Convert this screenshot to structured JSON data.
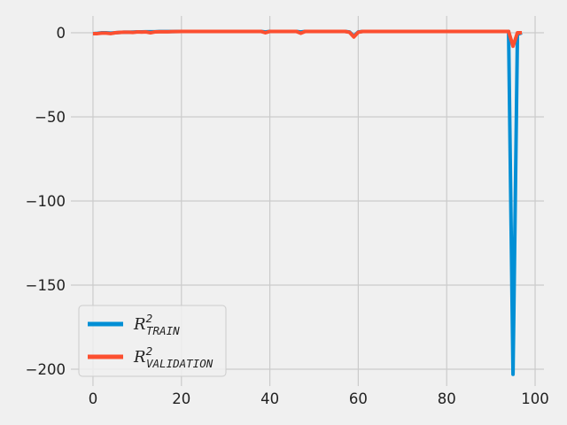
{
  "chart_data": {
    "type": "line",
    "title": "",
    "xlabel": "",
    "ylabel": "",
    "xlim": [
      -5,
      102
    ],
    "ylim": [
      -210,
      10
    ],
    "xticks": [
      0,
      20,
      40,
      60,
      80,
      100
    ],
    "yticks": [
      0,
      -50,
      -100,
      -150,
      -200
    ],
    "grid": true,
    "legend_position": "lower-left",
    "series": [
      {
        "name_main": "R",
        "name_sup": "2",
        "name_sub": "TRAIN",
        "color": "#008fd5",
        "x": [
          0,
          1,
          2,
          3,
          4,
          5,
          6,
          7,
          8,
          9,
          10,
          11,
          12,
          13,
          14,
          15,
          16,
          17,
          18,
          19,
          20,
          21,
          22,
          23,
          24,
          25,
          26,
          27,
          28,
          29,
          30,
          31,
          32,
          33,
          34,
          35,
          36,
          37,
          38,
          39,
          40,
          41,
          42,
          43,
          44,
          45,
          46,
          47,
          48,
          49,
          50,
          51,
          52,
          53,
          54,
          55,
          56,
          57,
          58,
          59,
          60,
          61,
          62,
          63,
          64,
          65,
          66,
          67,
          68,
          69,
          70,
          71,
          72,
          73,
          74,
          75,
          76,
          77,
          78,
          79,
          80,
          81,
          82,
          83,
          84,
          85,
          86,
          87,
          88,
          89,
          90,
          91,
          92,
          93,
          94,
          95,
          96,
          97
        ],
        "y": [
          -0.5,
          -0.3,
          0,
          0,
          -0.2,
          0,
          0.2,
          0.3,
          0.3,
          0.4,
          0.5,
          0.5,
          0.6,
          0.6,
          0.6,
          0.7,
          0.7,
          0.7,
          0.7,
          0.8,
          0.8,
          0.8,
          0.8,
          0.8,
          0.8,
          0.8,
          0.8,
          0.8,
          0.8,
          0.8,
          0.8,
          0.8,
          0.8,
          0.8,
          0.8,
          0.8,
          0.8,
          0.8,
          0.8,
          0.5,
          0.8,
          0.8,
          0.8,
          0.8,
          0.8,
          0.8,
          0.8,
          0.5,
          0.8,
          0.8,
          0.8,
          0.8,
          0.8,
          0.8,
          0.8,
          0.8,
          0.8,
          0.8,
          0.5,
          -2,
          0.5,
          0.8,
          0.8,
          0.8,
          0.8,
          0.8,
          0.8,
          0.8,
          0.8,
          0.8,
          0.8,
          0.8,
          0.8,
          0.8,
          0.8,
          0.8,
          0.8,
          0.8,
          0.8,
          0.8,
          0.8,
          0.8,
          0.8,
          0.8,
          0.8,
          0.8,
          0.8,
          0.8,
          0.8,
          0.8,
          0.8,
          0.8,
          0.8,
          0.8,
          0.8,
          -203,
          -1,
          0
        ]
      },
      {
        "name_main": "R",
        "name_sup": "2",
        "name_sub": "VALIDATION",
        "color": "#fc4f30",
        "x": [
          0,
          1,
          2,
          3,
          4,
          5,
          6,
          7,
          8,
          9,
          10,
          11,
          12,
          13,
          14,
          15,
          16,
          17,
          18,
          19,
          20,
          21,
          22,
          23,
          24,
          25,
          26,
          27,
          28,
          29,
          30,
          31,
          32,
          33,
          34,
          35,
          36,
          37,
          38,
          39,
          40,
          41,
          42,
          43,
          44,
          45,
          46,
          47,
          48,
          49,
          50,
          51,
          52,
          53,
          54,
          55,
          56,
          57,
          58,
          59,
          60,
          61,
          62,
          63,
          64,
          65,
          66,
          67,
          68,
          69,
          70,
          71,
          72,
          73,
          74,
          75,
          76,
          77,
          78,
          79,
          80,
          81,
          82,
          83,
          84,
          85,
          86,
          87,
          88,
          89,
          90,
          91,
          92,
          93,
          94,
          95,
          96,
          97
        ],
        "y": [
          -0.5,
          -0.5,
          -0.2,
          -0.2,
          -0.5,
          0,
          0.2,
          0.3,
          0.3,
          0.2,
          0.5,
          0.4,
          0.5,
          0,
          0.5,
          0.6,
          0.6,
          0.6,
          0.7,
          0.7,
          0.8,
          0.8,
          0.8,
          0.8,
          0.8,
          0.8,
          0.8,
          0.8,
          0.8,
          0.8,
          0.8,
          0.8,
          0.8,
          0.8,
          0.8,
          0.8,
          0.8,
          0.8,
          0.8,
          0,
          0.8,
          0.8,
          0.8,
          0.8,
          0.8,
          0.8,
          0.8,
          -0.3,
          0.8,
          0.8,
          0.8,
          0.8,
          0.8,
          0.8,
          0.8,
          0.8,
          0.8,
          0.8,
          0.3,
          -2.5,
          0.3,
          0.8,
          0.8,
          0.8,
          0.8,
          0.8,
          0.8,
          0.8,
          0.8,
          0.8,
          0.8,
          0.8,
          0.8,
          0.8,
          0.8,
          0.8,
          0.8,
          0.8,
          0.8,
          0.8,
          0.8,
          0.8,
          0.8,
          0.8,
          0.8,
          0.8,
          0.8,
          0.8,
          0.8,
          0.8,
          0.8,
          0.8,
          0.8,
          0.8,
          0.8,
          -8,
          0,
          0
        ]
      }
    ]
  }
}
